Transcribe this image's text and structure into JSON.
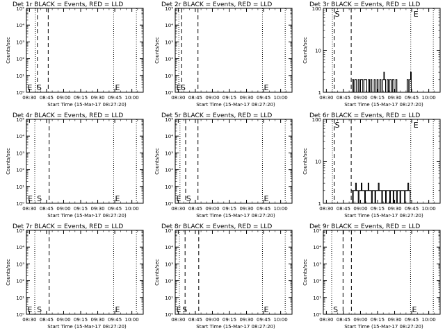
{
  "chart_data": [
    {
      "type": "line",
      "title": "Det 1r BLACK = Events, RED = LLD",
      "xlabel": "Start Time (15-Mar-17 08:27:20)",
      "ylabel": "Counts/sec",
      "log_y": true,
      "ylim": [
        1,
        100000
      ],
      "ytick_labels": [
        "10⁰",
        "10¹",
        "10²",
        "10³",
        "10⁴",
        "10⁵"
      ],
      "xlim": [
        "08:27:20",
        "10:10:00"
      ],
      "xtick_labels": [
        "08:30",
        "08:45",
        "09:00",
        "09:15",
        "09:30",
        "09:45",
        "10:00"
      ],
      "markers": [
        {
          "label": "E",
          "x": "08:27:40"
        },
        {
          "label": "S",
          "x": "08:35:50"
        },
        {
          "label": "E",
          "x": "09:44:40"
        }
      ],
      "dashed_lines": [
        "08:37:00",
        "08:46:30"
      ],
      "dotted_lines": [
        "08:35:10",
        "09:44:00",
        "10:04:00"
      ],
      "series": [
        {
          "points": []
        }
      ]
    },
    {
      "type": "line",
      "title": "Det 2r BLACK = Events, RED = LLD",
      "xlabel": "Start Time (15-Mar-17 08:27:20)",
      "ylabel": "Counts/sec",
      "log_y": true,
      "ylim": [
        1,
        100000
      ],
      "ytick_labels": [
        "10⁰",
        "10¹",
        "10²",
        "10³",
        "10⁴",
        "10⁵"
      ],
      "xlim": [
        "08:27:20",
        "10:10:00"
      ],
      "xtick_labels": [
        "08:30",
        "08:45",
        "09:00",
        "09:15",
        "09:30",
        "09:45",
        "10:00"
      ],
      "markers": [
        {
          "label": "E",
          "x": "08:27:40"
        },
        {
          "label": "S",
          "x": "08:31:30"
        },
        {
          "label": "E",
          "x": "09:44:40"
        }
      ],
      "dashed_lines": [
        "08:33:00",
        "08:47:20"
      ],
      "dotted_lines": [
        "08:30:30",
        "09:44:00",
        "10:04:00"
      ],
      "series": [
        {
          "points": []
        }
      ]
    },
    {
      "type": "line",
      "title": "Det 3r BLACK = Events, RED = LLD",
      "xlabel": "Start Time (15-Mar-17 08:27:20)",
      "ylabel": "Counts/sec",
      "log_y": true,
      "ylim": [
        1,
        100
      ],
      "ytick_labels": [
        "1",
        "10",
        "100"
      ],
      "xlim": [
        "08:27:20",
        "10:10:00"
      ],
      "xtick_labels": [
        "08:30",
        "08:45",
        "09:00",
        "09:15",
        "09:30",
        "09:45",
        "10:00"
      ],
      "markers": [
        {
          "label": "S",
          "x": "08:36:50"
        },
        {
          "label": "E",
          "x": "09:46:00"
        }
      ],
      "dashed_lines": [
        "08:37:00",
        "08:51:50"
      ],
      "dotted_lines": [
        "08:35:20",
        "09:44:10",
        "10:04:00"
      ],
      "series": [
        {
          "points": [
            [
              "08:51:50",
              1
            ],
            [
              "08:53:00",
              2
            ],
            [
              "08:54:00",
              1
            ],
            [
              "08:55:00",
              2
            ],
            [
              "08:56:30",
              1
            ],
            [
              "08:58:00",
              2
            ],
            [
              "08:59:00",
              1
            ],
            [
              "09:00:00",
              2
            ],
            [
              "09:02:00",
              1
            ],
            [
              "09:03:00",
              2
            ],
            [
              "09:04:30",
              2
            ],
            [
              "09:05:30",
              1
            ],
            [
              "09:07:00",
              2
            ],
            [
              "09:08:00",
              1
            ],
            [
              "09:09:00",
              2
            ],
            [
              "09:10:00",
              1
            ],
            [
              "09:12:00",
              2
            ],
            [
              "09:13:00",
              1
            ],
            [
              "09:14:30",
              2
            ],
            [
              "09:15:30",
              1
            ],
            [
              "09:17:00",
              2
            ],
            [
              "09:18:00",
              1
            ],
            [
              "09:19:30",
              2
            ],
            [
              "09:20:30",
              3
            ],
            [
              "09:21:00",
              2
            ],
            [
              "09:22:00",
              1
            ],
            [
              "09:23:30",
              2
            ],
            [
              "09:24:30",
              1
            ],
            [
              "09:25:30",
              2
            ],
            [
              "09:27:00",
              1
            ],
            [
              "09:28:00",
              2
            ],
            [
              "09:29:30",
              1
            ],
            [
              "09:31:00",
              2
            ],
            [
              "09:32:00",
              1
            ],
            [
              "09:33:30",
              1
            ],
            [
              "09:40:00",
              1
            ],
            [
              "09:41:00",
              2
            ],
            [
              "09:42:00",
              1
            ],
            [
              "09:43:00",
              2
            ],
            [
              "09:44:00",
              3
            ],
            [
              "09:44:40",
              1
            ]
          ]
        }
      ]
    },
    {
      "type": "line",
      "title": "Det 4r BLACK = Events, RED = LLD",
      "xlabel": "Start Time (15-Mar-17 08:27:20)",
      "ylabel": "Counts/sec",
      "log_y": true,
      "ylim": [
        1,
        100000
      ],
      "ytick_labels": [
        "10⁰",
        "10¹",
        "10²",
        "10³",
        "10⁴",
        "10⁵"
      ],
      "xlim": [
        "08:27:20",
        "10:10:00"
      ],
      "xtick_labels": [
        "08:30",
        "08:45",
        "09:00",
        "09:15",
        "09:30",
        "09:45",
        "10:00"
      ],
      "markers": [
        {
          "label": "E",
          "x": "08:28:00"
        },
        {
          "label": "S",
          "x": "08:36:00"
        },
        {
          "label": "E",
          "x": "09:44:40"
        }
      ],
      "dashed_lines": [
        "08:47:20"
      ],
      "dotted_lines": [
        "08:34:40",
        "09:44:00",
        "10:04:00"
      ],
      "series": [
        {
          "points": []
        }
      ]
    },
    {
      "type": "line",
      "title": "Det 5r BLACK = Events, RED = LLD",
      "xlabel": "Start Time (15-Mar-17 08:27:20)",
      "ylabel": "Counts/sec",
      "log_y": true,
      "ylim": [
        1,
        100000
      ],
      "ytick_labels": [
        "10⁰",
        "10¹",
        "10²",
        "10³",
        "10⁴",
        "10⁵"
      ],
      "xlim": [
        "08:27:20",
        "10:10:00"
      ],
      "xtick_labels": [
        "08:30",
        "08:45",
        "09:00",
        "09:15",
        "09:30",
        "09:45",
        "10:00"
      ],
      "markers": [
        {
          "label": "E",
          "x": "08:27:40"
        },
        {
          "label": "S",
          "x": "08:36:20"
        },
        {
          "label": "E",
          "x": "09:44:40"
        }
      ],
      "dashed_lines": [
        "08:36:30",
        "08:47:20"
      ],
      "dotted_lines": [
        "08:31:30",
        "09:44:00",
        "10:04:00"
      ],
      "series": [
        {
          "points": []
        }
      ]
    },
    {
      "type": "line",
      "title": "Det 6r BLACK = Events, RED = LLD",
      "xlabel": "Start Time (15-Mar-17 08:27:20)",
      "ylabel": "Counts/sec",
      "log_y": true,
      "ylim": [
        1,
        100
      ],
      "ytick_labels": [
        "1",
        "10",
        "100"
      ],
      "xlim": [
        "08:27:20",
        "10:10:00"
      ],
      "xtick_labels": [
        "08:30",
        "08:45",
        "09:00",
        "09:15",
        "09:30",
        "09:45",
        "10:00"
      ],
      "markers": [
        {
          "label": "S",
          "x": "08:36:50"
        },
        {
          "label": "E",
          "x": "09:46:00"
        }
      ],
      "dashed_lines": [
        "08:37:00",
        "08:51:50"
      ],
      "dotted_lines": [
        "08:35:20",
        "09:44:10",
        "10:04:00"
      ],
      "series": [
        {
          "points": [
            [
              "08:51:50",
              2
            ],
            [
              "08:52:30",
              2
            ],
            [
              "08:53:00",
              1
            ],
            [
              "08:53:40",
              2
            ],
            [
              "08:55:00",
              2
            ],
            [
              "08:55:40",
              3
            ],
            [
              "08:56:20",
              2
            ],
            [
              "08:57:30",
              2
            ],
            [
              "08:58:00",
              1
            ],
            [
              "08:58:40",
              2
            ],
            [
              "09:00:00",
              2
            ],
            [
              "09:00:40",
              3
            ],
            [
              "09:01:20",
              2
            ],
            [
              "09:03:00",
              2
            ],
            [
              "09:03:40",
              1
            ],
            [
              "09:04:20",
              2
            ],
            [
              "09:06:00",
              2
            ],
            [
              "09:06:40",
              3
            ],
            [
              "09:07:20",
              2
            ],
            [
              "09:09:00",
              2
            ],
            [
              "09:09:40",
              1
            ],
            [
              "09:10:20",
              2
            ],
            [
              "09:12:00",
              2
            ],
            [
              "09:12:40",
              1
            ],
            [
              "09:13:20",
              2
            ],
            [
              "09:15:00",
              2
            ],
            [
              "09:15:40",
              3
            ],
            [
              "09:16:20",
              2
            ],
            [
              "09:18:00",
              2
            ],
            [
              "09:18:40",
              1
            ],
            [
              "09:19:20",
              2
            ],
            [
              "09:21:00",
              2
            ],
            [
              "09:22:00",
              1
            ],
            [
              "09:22:40",
              2
            ],
            [
              "09:25:00",
              2
            ],
            [
              "09:25:40",
              1
            ],
            [
              "09:26:20",
              2
            ],
            [
              "09:28:00",
              2
            ],
            [
              "09:28:40",
              1
            ],
            [
              "09:29:20",
              2
            ],
            [
              "09:31:00",
              2
            ],
            [
              "09:31:40",
              1
            ],
            [
              "09:32:20",
              2
            ],
            [
              "09:34:00",
              2
            ],
            [
              "09:34:40",
              1
            ],
            [
              "09:35:20",
              2
            ],
            [
              "09:37:00",
              2
            ],
            [
              "09:38:00",
              2
            ],
            [
              "09:38:40",
              1
            ],
            [
              "09:39:20",
              2
            ],
            [
              "09:41:00",
              2
            ],
            [
              "09:41:40",
              3
            ],
            [
              "09:42:20",
              2
            ],
            [
              "09:43:00",
              2
            ],
            [
              "09:43:40",
              1
            ],
            [
              "09:44:10",
              1
            ]
          ]
        }
      ]
    },
    {
      "type": "line",
      "title": "Det 7r BLACK = Events, RED = LLD",
      "xlabel": "Start Time (15-Mar-17 08:27:20)",
      "ylabel": "Counts/sec",
      "log_y": true,
      "ylim": [
        1,
        100000
      ],
      "ytick_labels": [
        "10⁰",
        "10¹",
        "10²",
        "10³",
        "10⁴",
        "10⁵"
      ],
      "xlim": [
        "08:27:20",
        "10:10:00"
      ],
      "xtick_labels": [
        "08:30",
        "08:45",
        "09:00",
        "09:15",
        "09:30",
        "09:45",
        "10:00"
      ],
      "markers": [
        {
          "label": "E",
          "x": "08:27:40"
        },
        {
          "label": "S",
          "x": "08:36:00"
        },
        {
          "label": "E",
          "x": "09:44:40"
        }
      ],
      "dashed_lines": [
        "08:47:20"
      ],
      "dotted_lines": [
        "08:34:40",
        "09:44:00",
        "10:04:00"
      ],
      "series": [
        {
          "points": []
        }
      ]
    },
    {
      "type": "line",
      "title": "Det 8r BLACK = Events, RED = LLD",
      "xlabel": "Start Time (15-Mar-17 08:27:20)",
      "ylabel": "Counts/sec",
      "log_y": true,
      "ylim": [
        1,
        100000
      ],
      "ytick_labels": [
        "10⁰",
        "10¹",
        "10²",
        "10³",
        "10⁴",
        "10⁵"
      ],
      "xlim": [
        "08:27:20",
        "10:10:00"
      ],
      "xtick_labels": [
        "08:30",
        "08:45",
        "09:00",
        "09:15",
        "09:30",
        "09:45",
        "10:00"
      ],
      "markers": [
        {
          "label": "E",
          "x": "08:27:40"
        },
        {
          "label": "S",
          "x": "08:33:00"
        },
        {
          "label": "E",
          "x": "09:44:40"
        }
      ],
      "dashed_lines": [
        "08:36:00",
        "08:48:00"
      ],
      "dotted_lines": [
        "08:31:00",
        "09:44:00",
        "10:04:00"
      ],
      "series": [
        {
          "points": []
        }
      ]
    },
    {
      "type": "line",
      "title": "Det 9r BLACK = Events, RED = LLD",
      "xlabel": "Start Time (15-Mar-17 08:27:20)",
      "ylabel": "Counts/sec",
      "log_y": true,
      "ylim": [
        1,
        100000
      ],
      "ytick_labels": [
        "10⁰",
        "10¹",
        "10²",
        "10³",
        "10⁴",
        "10⁵"
      ],
      "xlim": [
        "08:27:20",
        "10:10:00"
      ],
      "xtick_labels": [
        "08:30",
        "08:45",
        "09:00",
        "09:15",
        "09:30",
        "09:45",
        "10:00"
      ],
      "markers": [
        {
          "label": "S",
          "x": "08:35:20"
        },
        {
          "label": "E",
          "x": "09:44:40"
        }
      ],
      "dashed_lines": [
        "08:44:40",
        "08:52:00"
      ],
      "dotted_lines": [
        "08:34:40",
        "09:44:00",
        "10:04:00"
      ],
      "series": [
        {
          "points": []
        }
      ]
    }
  ]
}
